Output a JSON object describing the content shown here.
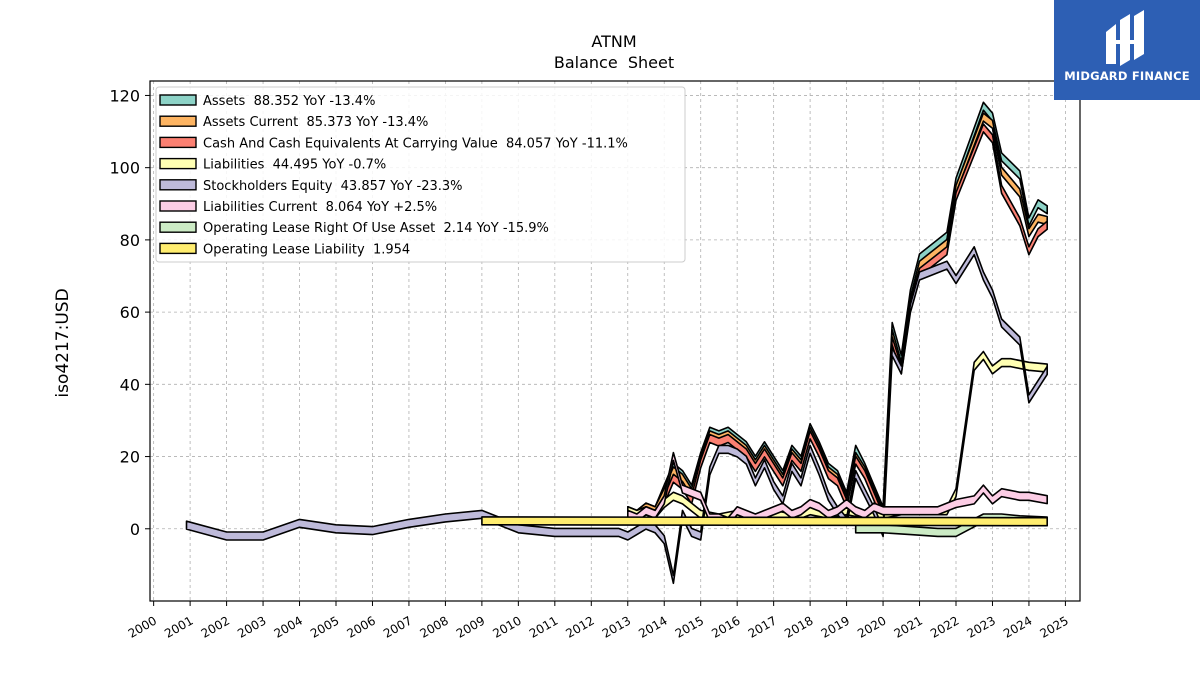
{
  "brand": {
    "name": "MIDGARD FINANCE",
    "bg": "#2d5fb4"
  },
  "chart_data": {
    "type": "area",
    "title": "ATNM",
    "subtitle": "Balance  Sheet",
    "ylabel": "iso4217:USD",
    "xlabel": "",
    "xlim": [
      1999.9,
      2025.4
    ],
    "ylim": [
      -20,
      124
    ],
    "yticks": [
      0,
      20,
      40,
      60,
      80,
      100,
      120
    ],
    "xticks": [
      2000,
      2001,
      2002,
      2003,
      2004,
      2005,
      2006,
      2007,
      2008,
      2009,
      2010,
      2011,
      2012,
      2013,
      2014,
      2015,
      2016,
      2017,
      2018,
      2019,
      2020,
      2021,
      2022,
      2023,
      2024,
      2025
    ],
    "grid": true,
    "legend_position": "top-left",
    "series": [
      {
        "name": "Assets",
        "legend": "Assets  88.352 YoY -13.4%",
        "color": "#8dd3c7",
        "points": [
          [
            2013.0,
            5
          ],
          [
            2013.25,
            4
          ],
          [
            2013.5,
            6
          ],
          [
            2013.75,
            5
          ],
          [
            2014.0,
            11
          ],
          [
            2014.25,
            17
          ],
          [
            2014.5,
            15
          ],
          [
            2014.75,
            11
          ],
          [
            2015.0,
            20
          ],
          [
            2015.25,
            27
          ],
          [
            2015.5,
            26
          ],
          [
            2015.75,
            27
          ],
          [
            2016.0,
            25
          ],
          [
            2016.25,
            23
          ],
          [
            2016.5,
            19
          ],
          [
            2016.75,
            23
          ],
          [
            2017.0,
            19
          ],
          [
            2017.25,
            15
          ],
          [
            2017.5,
            22
          ],
          [
            2017.75,
            19
          ],
          [
            2018.0,
            28
          ],
          [
            2018.25,
            23
          ],
          [
            2018.5,
            17
          ],
          [
            2018.75,
            15
          ],
          [
            2019.0,
            9
          ],
          [
            2019.25,
            22
          ],
          [
            2019.5,
            17
          ],
          [
            2019.75,
            11
          ],
          [
            2020.0,
            5
          ],
          [
            2020.25,
            56
          ],
          [
            2020.5,
            47
          ],
          [
            2020.75,
            65
          ],
          [
            2021.0,
            75
          ],
          [
            2021.75,
            81
          ],
          [
            2022.0,
            96
          ],
          [
            2022.75,
            117
          ],
          [
            2023.0,
            114
          ],
          [
            2023.25,
            103
          ],
          [
            2023.75,
            98
          ],
          [
            2024.0,
            85
          ],
          [
            2024.25,
            90
          ],
          [
            2024.5,
            88.352
          ]
        ]
      },
      {
        "name": "Assets Current",
        "legend": "Assets Current  85.373 YoY -13.4%",
        "color": "#fdb462",
        "points": [
          [
            2013.0,
            5
          ],
          [
            2013.25,
            4
          ],
          [
            2013.5,
            6
          ],
          [
            2013.75,
            5
          ],
          [
            2014.0,
            10
          ],
          [
            2014.25,
            16
          ],
          [
            2014.5,
            14
          ],
          [
            2014.75,
            10
          ],
          [
            2015.0,
            19
          ],
          [
            2015.25,
            26
          ],
          [
            2015.5,
            25
          ],
          [
            2015.75,
            26
          ],
          [
            2016.0,
            24
          ],
          [
            2016.25,
            22
          ],
          [
            2016.5,
            18
          ],
          [
            2016.75,
            22
          ],
          [
            2017.0,
            18
          ],
          [
            2017.25,
            14
          ],
          [
            2017.5,
            21
          ],
          [
            2017.75,
            18
          ],
          [
            2018.0,
            27
          ],
          [
            2018.25,
            22
          ],
          [
            2018.5,
            16
          ],
          [
            2018.75,
            14
          ],
          [
            2019.0,
            8
          ],
          [
            2019.25,
            20
          ],
          [
            2019.5,
            16
          ],
          [
            2019.75,
            10
          ],
          [
            2020.0,
            4
          ],
          [
            2020.25,
            54
          ],
          [
            2020.5,
            45
          ],
          [
            2020.75,
            63
          ],
          [
            2021.0,
            73
          ],
          [
            2021.75,
            79
          ],
          [
            2022.0,
            94
          ],
          [
            2022.75,
            114
          ],
          [
            2023.0,
            112
          ],
          [
            2023.25,
            99
          ],
          [
            2023.75,
            93
          ],
          [
            2024.0,
            82
          ],
          [
            2024.25,
            86
          ],
          [
            2024.5,
            85.373
          ]
        ]
      },
      {
        "name": "Cash And Cash Equivalents At Carrying Value",
        "legend": "Cash And Cash Equivalents At Carrying Value  84.057 YoY -11.1%",
        "color": "#fb8072",
        "points": [
          [
            2013.0,
            4
          ],
          [
            2013.25,
            3
          ],
          [
            2013.5,
            5
          ],
          [
            2013.75,
            4
          ],
          [
            2014.0,
            8
          ],
          [
            2014.25,
            14
          ],
          [
            2014.5,
            12
          ],
          [
            2014.75,
            8
          ],
          [
            2015.0,
            18
          ],
          [
            2015.25,
            25
          ],
          [
            2015.5,
            24
          ],
          [
            2015.75,
            25
          ],
          [
            2016.0,
            23
          ],
          [
            2016.25,
            21
          ],
          [
            2016.5,
            17
          ],
          [
            2016.75,
            21
          ],
          [
            2017.0,
            17
          ],
          [
            2017.25,
            13
          ],
          [
            2017.5,
            20
          ],
          [
            2017.75,
            17
          ],
          [
            2018.0,
            26
          ],
          [
            2018.25,
            21
          ],
          [
            2018.5,
            15
          ],
          [
            2018.75,
            13
          ],
          [
            2019.0,
            7
          ],
          [
            2019.25,
            19
          ],
          [
            2019.5,
            15
          ],
          [
            2019.75,
            9
          ],
          [
            2020.0,
            3
          ],
          [
            2020.25,
            52
          ],
          [
            2020.5,
            44
          ],
          [
            2020.75,
            62
          ],
          [
            2021.0,
            71
          ],
          [
            2021.75,
            77
          ],
          [
            2022.0,
            92
          ],
          [
            2022.75,
            111
          ],
          [
            2023.0,
            108
          ],
          [
            2023.25,
            94
          ],
          [
            2023.75,
            85
          ],
          [
            2024.0,
            77
          ],
          [
            2024.25,
            82
          ],
          [
            2024.5,
            84.057
          ]
        ]
      },
      {
        "name": "Liabilities",
        "legend": "Liabilities  44.495 YoY -0.7%",
        "color": "#ffffb3",
        "points": [
          [
            2013.0,
            5
          ],
          [
            2013.25,
            4
          ],
          [
            2013.5,
            5
          ],
          [
            2013.75,
            4
          ],
          [
            2014.0,
            7
          ],
          [
            2014.25,
            9
          ],
          [
            2014.5,
            8
          ],
          [
            2014.75,
            6
          ],
          [
            2015.0,
            4
          ],
          [
            2015.5,
            3
          ],
          [
            2016.0,
            4
          ],
          [
            2016.5,
            3
          ],
          [
            2017.0,
            4
          ],
          [
            2017.5,
            3
          ],
          [
            2018.0,
            5
          ],
          [
            2018.5,
            4
          ],
          [
            2019.0,
            5
          ],
          [
            2019.5,
            4
          ],
          [
            2020.0,
            4
          ],
          [
            2020.5,
            5
          ],
          [
            2021.0,
            5
          ],
          [
            2021.75,
            5
          ],
          [
            2022.0,
            10
          ],
          [
            2022.5,
            45
          ],
          [
            2022.75,
            48
          ],
          [
            2023.0,
            44
          ],
          [
            2023.25,
            46
          ],
          [
            2023.5,
            46
          ],
          [
            2024.0,
            45
          ],
          [
            2024.5,
            44.495
          ]
        ]
      },
      {
        "name": "Stockholders Equity",
        "legend": "Stockholders Equity  43.857 YoY -23.3%",
        "color": "#bebada",
        "points": [
          [
            2000.9,
            1
          ],
          [
            2002.0,
            -2
          ],
          [
            2003.0,
            -2
          ],
          [
            2004.0,
            1.5
          ],
          [
            2005.0,
            0
          ],
          [
            2006.0,
            -0.5
          ],
          [
            2007.0,
            1.5
          ],
          [
            2008.0,
            3
          ],
          [
            2009.0,
            4
          ],
          [
            2010.0,
            0
          ],
          [
            2011.0,
            -1
          ],
          [
            2012.0,
            -1
          ],
          [
            2012.75,
            -1
          ],
          [
            2013.0,
            -2
          ],
          [
            2013.5,
            1
          ],
          [
            2013.75,
            0
          ],
          [
            2014.0,
            -3
          ],
          [
            2014.25,
            -14
          ],
          [
            2014.5,
            4
          ],
          [
            2014.75,
            -1
          ],
          [
            2015.0,
            -2
          ],
          [
            2015.25,
            16
          ],
          [
            2015.5,
            22
          ],
          [
            2015.75,
            22
          ],
          [
            2016.0,
            21
          ],
          [
            2016.25,
            19
          ],
          [
            2016.5,
            13
          ],
          [
            2016.75,
            18
          ],
          [
            2017.0,
            12
          ],
          [
            2017.25,
            8
          ],
          [
            2017.5,
            17
          ],
          [
            2017.75,
            13
          ],
          [
            2018.0,
            22
          ],
          [
            2018.25,
            16
          ],
          [
            2018.5,
            9
          ],
          [
            2018.75,
            5
          ],
          [
            2019.0,
            2
          ],
          [
            2019.25,
            15
          ],
          [
            2019.5,
            10
          ],
          [
            2019.75,
            5
          ],
          [
            2020.0,
            -1
          ],
          [
            2020.25,
            49
          ],
          [
            2020.5,
            44
          ],
          [
            2020.75,
            61
          ],
          [
            2021.0,
            70
          ],
          [
            2021.75,
            73
          ],
          [
            2022.0,
            69
          ],
          [
            2022.5,
            77
          ],
          [
            2022.75,
            70
          ],
          [
            2023.0,
            65
          ],
          [
            2023.25,
            57
          ],
          [
            2023.75,
            52
          ],
          [
            2024.0,
            36
          ],
          [
            2024.5,
            43.857
          ]
        ]
      },
      {
        "name": "Liabilities Current",
        "legend": "Liabilities Current  8.064 YoY +2.5%",
        "color": "#fccde5",
        "points": [
          [
            2013.0,
            4
          ],
          [
            2013.25,
            3
          ],
          [
            2013.5,
            5
          ],
          [
            2013.75,
            4
          ],
          [
            2014.0,
            8
          ],
          [
            2014.25,
            20
          ],
          [
            2014.5,
            11
          ],
          [
            2014.75,
            10
          ],
          [
            2015.0,
            9
          ],
          [
            2015.25,
            3
          ],
          [
            2015.5,
            3
          ],
          [
            2015.75,
            2
          ],
          [
            2016.0,
            5
          ],
          [
            2016.5,
            3
          ],
          [
            2016.75,
            4
          ],
          [
            2017.0,
            5
          ],
          [
            2017.25,
            6
          ],
          [
            2017.5,
            4
          ],
          [
            2017.75,
            5
          ],
          [
            2018.0,
            7
          ],
          [
            2018.25,
            6
          ],
          [
            2018.5,
            4
          ],
          [
            2018.75,
            5
          ],
          [
            2019.0,
            7
          ],
          [
            2019.25,
            5
          ],
          [
            2019.5,
            4
          ],
          [
            2019.75,
            6
          ],
          [
            2020.0,
            5
          ],
          [
            2020.5,
            5
          ],
          [
            2021.0,
            5
          ],
          [
            2021.5,
            5
          ],
          [
            2022.0,
            7
          ],
          [
            2022.5,
            8
          ],
          [
            2022.75,
            11
          ],
          [
            2023.0,
            8
          ],
          [
            2023.25,
            10
          ],
          [
            2023.75,
            9
          ],
          [
            2024.0,
            9
          ],
          [
            2024.5,
            8.064
          ]
        ]
      },
      {
        "name": "Operating Lease Right Of Use Asset",
        "legend": "Operating Lease Right Of Use Asset  2.14 YoY -15.9%",
        "color": "#ccebc5",
        "points": [
          [
            2019.25,
            0
          ],
          [
            2020.0,
            0
          ],
          [
            2020.75,
            -0.5
          ],
          [
            2021.5,
            -1
          ],
          [
            2022.0,
            -1
          ],
          [
            2022.75,
            3
          ],
          [
            2023.25,
            3
          ],
          [
            2023.75,
            2.5
          ],
          [
            2024.5,
            2.14
          ]
        ]
      },
      {
        "name": "Operating Lease Liability",
        "legend": "Operating Lease Liability  1.954",
        "color": "#ffed6f",
        "points": [
          [
            2009.0,
            2.2
          ],
          [
            2024.5,
            1.954
          ]
        ]
      }
    ],
    "band_halfwidth": 1.1
  }
}
